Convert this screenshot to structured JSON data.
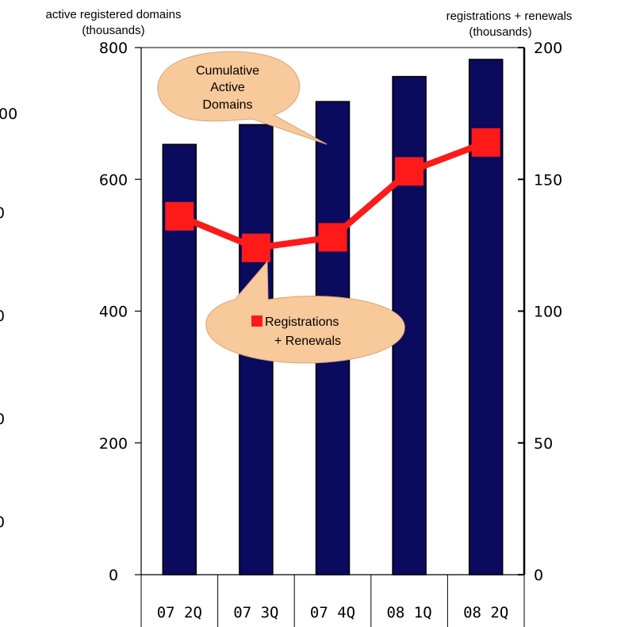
{
  "chart_data": {
    "type": "bar",
    "categories": [
      "07 2Q",
      "07 3Q",
      "07 4Q",
      "08 1Q",
      "08 2Q"
    ],
    "series": [
      {
        "type": "bar",
        "axis": "left",
        "values": [
          653,
          683,
          718,
          756,
          782
        ],
        "color": "#0a0a5e"
      },
      {
        "type": "line",
        "axis": "right",
        "values": [
          136,
          124,
          128,
          153,
          164
        ],
        "color": "#ff1a1a"
      }
    ],
    "left_axis": {
      "title_line1": "active registered domains",
      "title_line2": "(thousands)",
      "ticks": [
        "0",
        "200",
        "400",
        "600",
        "800"
      ],
      "ylim": [
        0,
        800
      ]
    },
    "right_axis": {
      "title_line1": "registrations + renewals",
      "title_line2": "(thousands)",
      "ticks": [
        "0",
        "50",
        "100",
        "150",
        "200"
      ],
      "ylim": [
        0,
        200
      ]
    },
    "left_edge_fragments": [
      "00",
      "0",
      "0",
      "0",
      "0"
    ],
    "callouts": {
      "bars": {
        "lines": [
          "Cumulative",
          "Active",
          "Domains"
        ],
        "fill": "#f8c99a"
      },
      "line": {
        "lines": [
          "Registrations",
          "+ Renewals"
        ],
        "fill": "#f8c99a"
      }
    },
    "grid": false,
    "legend": "none"
  }
}
